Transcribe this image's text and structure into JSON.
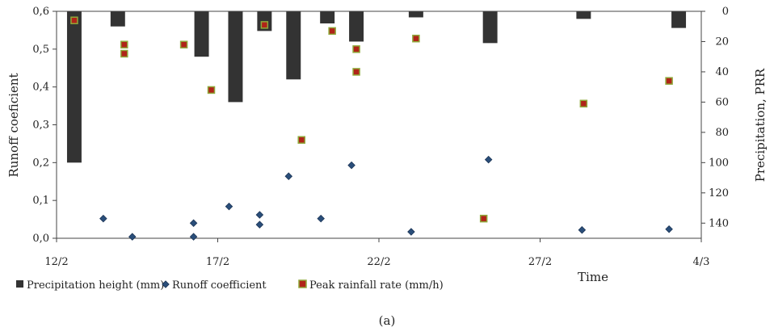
{
  "chart_data": {
    "type": "bar+scatter",
    "caption": "(a)",
    "x_axis": {
      "label": "Time",
      "ticks": [
        "12/2",
        "17/2",
        "22/2",
        "27/2",
        "4/3"
      ],
      "tick_values": [
        0,
        5,
        10,
        15,
        20
      ],
      "range": [
        0,
        20
      ]
    },
    "y_left": {
      "label": "Runoff coeficient",
      "range": [
        0,
        0.6
      ],
      "ticks": [
        "0,0",
        "0,1",
        "0,2",
        "0,3",
        "0,4",
        "0,5",
        "0,6"
      ],
      "tick_values": [
        0,
        0.1,
        0.2,
        0.3,
        0.4,
        0.5,
        0.6
      ]
    },
    "y_right": {
      "label": "Precipitation, PRR",
      "range": [
        0,
        150
      ],
      "inverted": true,
      "ticks": [
        "0",
        "20",
        "40",
        "60",
        "80",
        "100",
        "120",
        "140"
      ],
      "tick_values": [
        0,
        20,
        40,
        60,
        80,
        100,
        120,
        140
      ]
    },
    "legend": {
      "placement": "bottom",
      "entries": [
        {
          "label": "Precipitation height (mm)",
          "marker": "square",
          "color": "#333333"
        },
        {
          "label": "Runoff coefficient",
          "marker": "diamond",
          "color": "#2a4e7a"
        },
        {
          "label": "Peak rainfall rate (mm/h)",
          "marker": "square",
          "color": "#b02418",
          "border": "#8fa83a"
        }
      ]
    },
    "series": [
      {
        "name": "Precipitation height (mm)",
        "kind": "bar",
        "axis": "right",
        "color": "#333333",
        "x": [
          0.55,
          1.9,
          4.5,
          5.55,
          6.45,
          7.35,
          8.4,
          9.3,
          11.15,
          13.45,
          16.35,
          19.3
        ],
        "values": [
          100,
          10,
          30,
          60,
          13,
          45,
          8,
          20,
          4,
          21,
          5,
          11
        ]
      },
      {
        "name": "Runoff coefficient",
        "kind": "scatter",
        "marker": "diamond",
        "axis": "left",
        "color": "#2a4e7a",
        "x": [
          1.45,
          2.35,
          4.25,
          4.25,
          5.35,
          6.3,
          6.3,
          7.2,
          8.2,
          9.15,
          11.0,
          13.4,
          16.3,
          19.0
        ],
        "values": [
          0.052,
          0.004,
          0.04,
          0.004,
          0.084,
          0.036,
          0.062,
          0.164,
          0.052,
          0.193,
          0.017,
          0.208,
          0.022,
          0.024
        ]
      },
      {
        "name": "Peak rainfall rate (mm/h)",
        "kind": "scatter",
        "marker": "square",
        "axis": "right",
        "color": "#b02418",
        "border": "#8fa83a",
        "x": [
          0.55,
          2.1,
          2.1,
          3.95,
          4.8,
          6.45,
          7.6,
          8.55,
          9.3,
          9.3,
          11.15,
          13.25,
          16.35,
          19.0
        ],
        "values": [
          6,
          22,
          28,
          22,
          52,
          9,
          85,
          13,
          25,
          40,
          18,
          137,
          61,
          46
        ]
      }
    ]
  }
}
